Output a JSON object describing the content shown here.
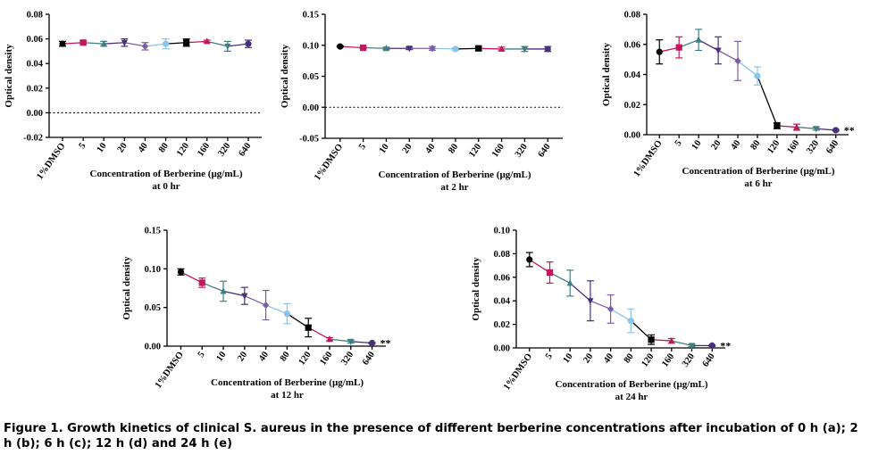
{
  "caption": "Figure 1. Growth kinetics of clinical S. aureus in the presence of different berberine concentrations after incubation of 0 h (a); 2 h (b); 6 h (c); 12 h (d) and 24 h (e)",
  "chart_data": [
    {
      "type": "line",
      "ylabel": "Optical density",
      "xlabel": "Concentration of Berberine (µg/mL)",
      "xlabel2": "at 0 hr",
      "categories": [
        "1%DMSO",
        "5",
        "10",
        "20",
        "40",
        "80",
        "120",
        "160",
        "320",
        "640"
      ],
      "ylim": [
        -0.02,
        0.08
      ],
      "yticks": [
        -0.02,
        0.0,
        0.02,
        0.04,
        0.06,
        0.08
      ],
      "tick_decimals": 2,
      "zero_line": true,
      "values": [
        0.056,
        0.057,
        0.056,
        0.057,
        0.054,
        0.056,
        0.057,
        0.058,
        0.054,
        0.056
      ],
      "errors": [
        0.002,
        0.001,
        0.002,
        0.003,
        0.003,
        0.004,
        0.003,
        0.001,
        0.004,
        0.003
      ],
      "annotation": ""
    },
    {
      "type": "line",
      "ylabel": "Optical density",
      "xlabel": "Concentration of Berberine (µg/mL)",
      "xlabel2": "at 2 hr",
      "categories": [
        "1%DMSO",
        "5",
        "10",
        "20",
        "40",
        "80",
        "120",
        "160",
        "320",
        "640"
      ],
      "ylim": [
        -0.05,
        0.15
      ],
      "yticks": [
        -0.05,
        0.0,
        0.05,
        0.1,
        0.15
      ],
      "tick_decimals": 2,
      "zero_line": true,
      "values": [
        0.098,
        0.096,
        0.095,
        0.095,
        0.095,
        0.094,
        0.095,
        0.094,
        0.094,
        0.094
      ],
      "errors": [
        0.001,
        0.001,
        0.002,
        0.002,
        0.003,
        0.002,
        0.003,
        0.003,
        0.004,
        0.004
      ],
      "annotation": ""
    },
    {
      "type": "line",
      "ylabel": "Optical density",
      "xlabel": "Concentration of Berberine (µg/mL)",
      "xlabel2": "at 6 hr",
      "categories": [
        "1%DMSO",
        "5",
        "10",
        "20",
        "40",
        "80",
        "120",
        "160",
        "320",
        "640"
      ],
      "ylim": [
        0,
        0.08
      ],
      "yticks": [
        0.0,
        0.02,
        0.04,
        0.06,
        0.08
      ],
      "tick_decimals": 2,
      "zero_line": false,
      "values": [
        0.055,
        0.058,
        0.063,
        0.056,
        0.049,
        0.039,
        0.006,
        0.005,
        0.004,
        0.003
      ],
      "errors": [
        0.008,
        0.007,
        0.007,
        0.009,
        0.013,
        0.006,
        0.002,
        0.002,
        0.001,
        0.0005
      ],
      "annotation": "**"
    },
    {
      "type": "line",
      "ylabel": "Optical density",
      "xlabel": "Concentration of Berberine (µg/mL)",
      "xlabel2": "at 12 hr",
      "categories": [
        "1%DMSO",
        "5",
        "10",
        "20",
        "40",
        "80",
        "120",
        "160",
        "320",
        "640"
      ],
      "ylim": [
        0,
        0.15
      ],
      "yticks": [
        0.0,
        0.05,
        0.1,
        0.15
      ],
      "tick_decimals": 2,
      "zero_line": false,
      "values": [
        0.096,
        0.082,
        0.071,
        0.065,
        0.053,
        0.042,
        0.024,
        0.009,
        0.006,
        0.004
      ],
      "errors": [
        0.004,
        0.006,
        0.013,
        0.011,
        0.019,
        0.013,
        0.012,
        0.002,
        0.002,
        0.001
      ],
      "annotation": "**"
    },
    {
      "type": "line",
      "ylabel": "Optical density",
      "xlabel": "Concentration of Berberine (µg/mL)",
      "xlabel2": "at 24 hr",
      "categories": [
        "1%DMSO",
        "5",
        "10",
        "20",
        "40",
        "80",
        "120",
        "160",
        "320",
        "640"
      ],
      "ylim": [
        0,
        0.1
      ],
      "yticks": [
        0.0,
        0.02,
        0.04,
        0.06,
        0.08,
        0.1
      ],
      "tick_decimals": 2,
      "zero_line": false,
      "values": [
        0.075,
        0.064,
        0.055,
        0.04,
        0.033,
        0.023,
        0.007,
        0.006,
        0.002,
        0.002
      ],
      "errors": [
        0.006,
        0.009,
        0.011,
        0.017,
        0.012,
        0.01,
        0.004,
        0.002,
        0.001,
        0.0005
      ],
      "annotation": "**"
    }
  ],
  "series_colors": [
    "#000000",
    "#c2185b",
    "#3f7f7f",
    "#4a2f7a",
    "#7b5ea7",
    "#8cc3e8",
    "#000000",
    "#c2185b",
    "#3f7f7f",
    "#4a2f7a"
  ],
  "series_markers": [
    "circle",
    "square",
    "triangle-up",
    "triangle-down",
    "diamond",
    "circle",
    "square",
    "triangle-up",
    "triangle-down",
    "circle"
  ]
}
